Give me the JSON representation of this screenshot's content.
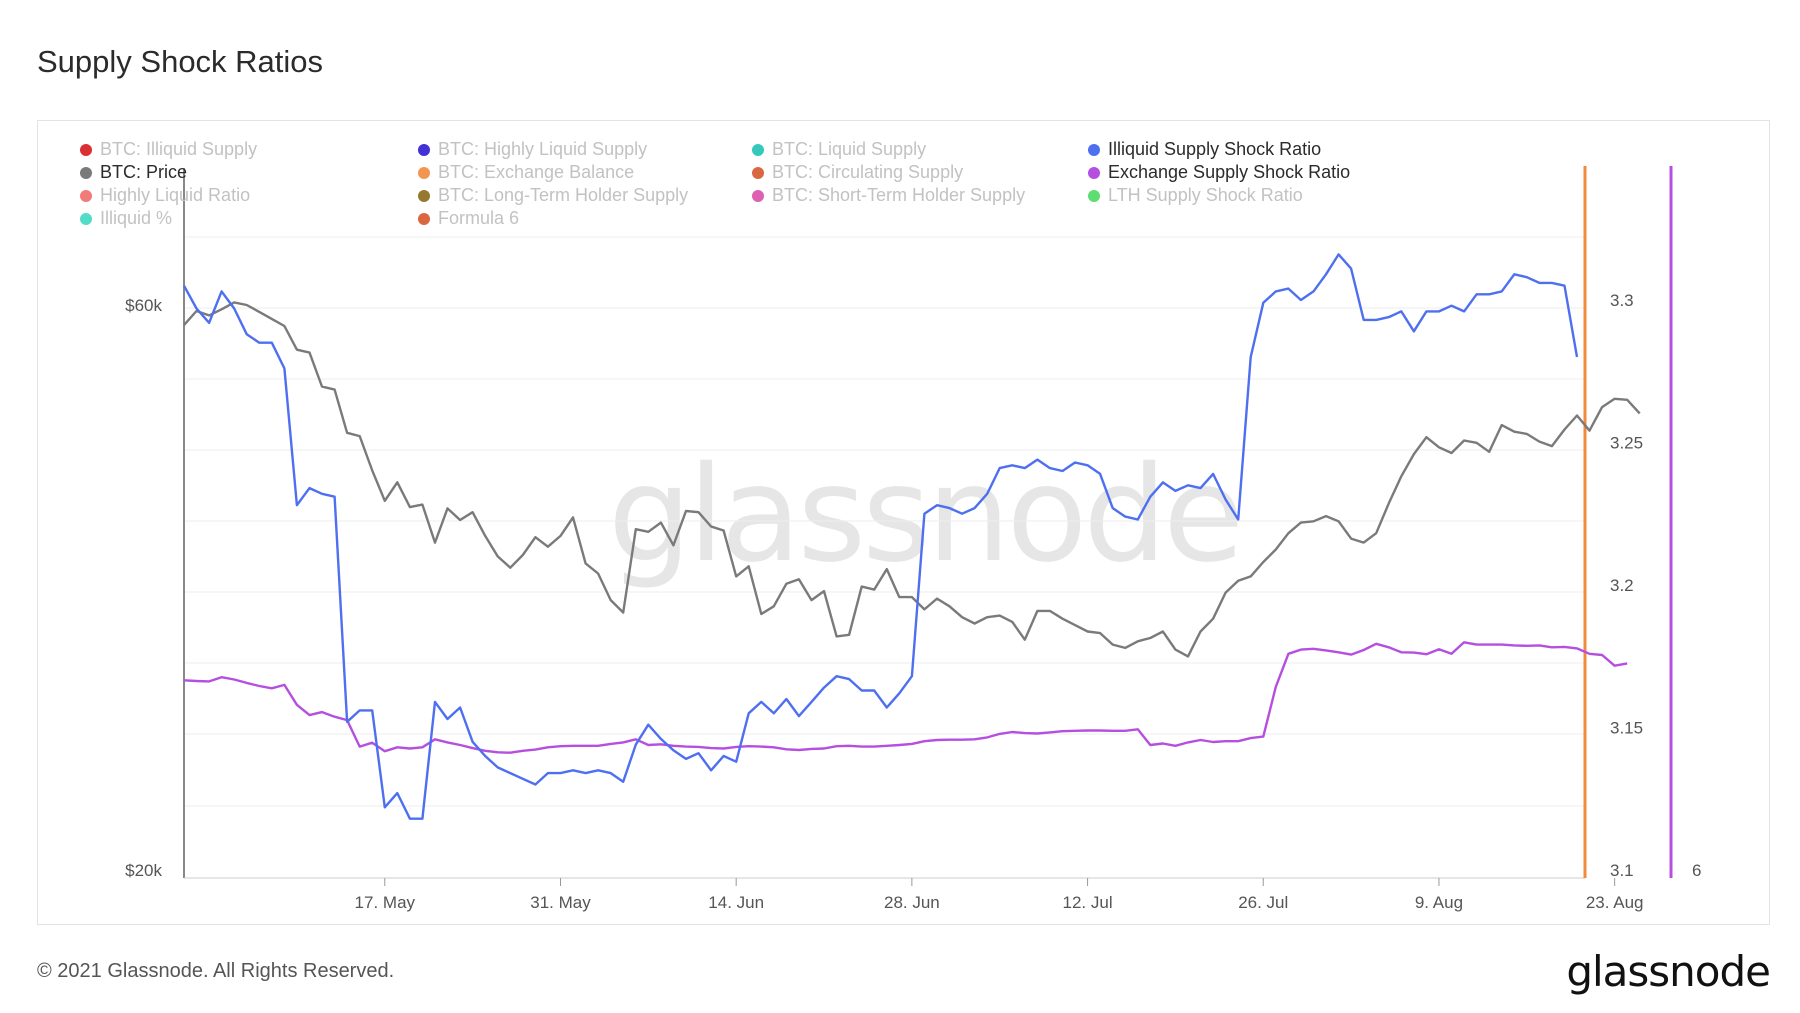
{
  "page": {
    "title": "Supply Shock Ratios",
    "copyright": "© 2021 Glassnode. All Rights Reserved.",
    "logo": "glassnode",
    "watermark": "glassnode"
  },
  "legend": [
    {
      "label": "BTC: Illiquid Supply",
      "color": "#d7191c",
      "active": false,
      "col": 0,
      "row": 0
    },
    {
      "label": "BTC: Highly Liquid Supply",
      "color": "#2c1bd1",
      "active": false,
      "col": 1,
      "row": 0
    },
    {
      "label": "BTC: Liquid Supply",
      "color": "#1fc3b4",
      "active": false,
      "col": 2,
      "row": 0
    },
    {
      "label": "Illiquid Supply Shock Ratio",
      "color": "#4e6ff0",
      "active": true,
      "col": 3,
      "row": 0
    },
    {
      "label": "BTC: Price",
      "color": "#7a7a7a",
      "active": true,
      "col": 0,
      "row": 1
    },
    {
      "label": "BTC: Exchange Balance",
      "color": "#f28a3c",
      "active": false,
      "col": 1,
      "row": 1
    },
    {
      "label": "BTC: Circulating Supply",
      "color": "#d5572b",
      "active": false,
      "col": 2,
      "row": 1
    },
    {
      "label": "Exchange Supply Shock Ratio",
      "color": "#b54fe0",
      "active": true,
      "col": 3,
      "row": 1
    },
    {
      "label": "Highly Liquid Ratio",
      "color": "#f06b6b",
      "active": false,
      "col": 0,
      "row": 2
    },
    {
      "label": "BTC: Long-Term Holder Supply",
      "color": "#8a6a1a",
      "active": false,
      "col": 1,
      "row": 2
    },
    {
      "label": "BTC: Short-Term Holder Supply",
      "color": "#d94fa8",
      "active": false,
      "col": 2,
      "row": 2
    },
    {
      "label": "LTH Supply Shock Ratio",
      "color": "#4cd964",
      "active": false,
      "col": 3,
      "row": 2
    },
    {
      "label": "Illiquid %",
      "color": "#3fd7c1",
      "active": false,
      "col": 0,
      "row": 3
    },
    {
      "label": "Formula 6",
      "color": "#d5572b",
      "active": false,
      "col": 1,
      "row": 3
    }
  ],
  "chart_data": {
    "type": "line",
    "title": "Supply Shock Ratios",
    "x_start": "2021-05-01",
    "x_end": "2021-08-24",
    "x_ticks": [
      {
        "label": "17. May",
        "day": 16
      },
      {
        "label": "31. May",
        "day": 30
      },
      {
        "label": "14. Jun",
        "day": 44
      },
      {
        "label": "28. Jun",
        "day": 58
      },
      {
        "label": "12. Jul",
        "day": 72
      },
      {
        "label": "26. Jul",
        "day": 86
      },
      {
        "label": "9. Aug",
        "day": 100
      },
      {
        "label": "23. Aug",
        "day": 114
      }
    ],
    "left_axis": {
      "ticks": [
        {
          "label": "$20k",
          "value": 20000
        },
        {
          "label": "$60k",
          "value": 60000
        }
      ],
      "scale": "log"
    },
    "right_axis_1": {
      "ticks": [
        {
          "label": "3.1",
          "value": 3.1
        },
        {
          "label": "3.15",
          "value": 3.15
        },
        {
          "label": "3.2",
          "value": 3.2
        },
        {
          "label": "3.25",
          "value": 3.25
        },
        {
          "label": "3.3",
          "value": 3.3
        }
      ]
    },
    "right_axis_2": {
      "ticks": [
        {
          "label": "6",
          "value": 6
        }
      ]
    },
    "grid": true,
    "series": [
      {
        "name": "Illiquid Supply Shock Ratio",
        "color": "#4e6ff0",
        "axis": "right1",
        "values": [
          3.305,
          3.297,
          3.292,
          3.303,
          3.297,
          3.288,
          3.285,
          3.285,
          3.276,
          3.228,
          3.234,
          3.232,
          3.231,
          3.152,
          3.156,
          3.156,
          3.122,
          3.127,
          3.118,
          3.118,
          3.159,
          3.153,
          3.157,
          3.145,
          3.14,
          3.136,
          3.134,
          3.132,
          3.13,
          3.134,
          3.134,
          3.135,
          3.134,
          3.135,
          3.134,
          3.131,
          3.144,
          3.151,
          3.146,
          3.142,
          3.139,
          3.141,
          3.135,
          3.14,
          3.138,
          3.155,
          3.159,
          3.155,
          3.16,
          3.154,
          3.159,
          3.164,
          3.168,
          3.167,
          3.163,
          3.163,
          3.157,
          3.162,
          3.168,
          3.225,
          3.228,
          3.227,
          3.225,
          3.227,
          3.232,
          3.241,
          3.242,
          3.241,
          3.244,
          3.241,
          3.24,
          3.243,
          3.242,
          3.239,
          3.227,
          3.224,
          3.223,
          3.231,
          3.236,
          3.233,
          3.235,
          3.234,
          3.239,
          3.23,
          3.223,
          3.28,
          3.299,
          3.303,
          3.304,
          3.3,
          3.303,
          3.309,
          3.316,
          3.311,
          3.293,
          3.293,
          3.294,
          3.296,
          3.289,
          3.296,
          3.296,
          3.298,
          3.296,
          3.302,
          3.302,
          3.303,
          3.309,
          3.308,
          3.306,
          3.306,
          3.305,
          3.28
        ]
      },
      {
        "name": "BTC: Price",
        "color": "#7a7a7a",
        "axis": "left",
        "values": [
          57700,
          59300,
          58800,
          59500,
          60300,
          60000,
          59200,
          58400,
          57600,
          55000,
          54700,
          51200,
          50900,
          46800,
          46500,
          43500,
          41000,
          42500,
          40500,
          40700,
          37800,
          40400,
          39500,
          40100,
          38300,
          36800,
          36000,
          36900,
          38200,
          37500,
          38300,
          39700,
          36300,
          35600,
          33800,
          33000,
          38800,
          38600,
          39300,
          37600,
          40200,
          40100,
          39000,
          38700,
          35400,
          36100,
          32900,
          33400,
          34900,
          35200,
          33800,
          34400,
          31500,
          31600,
          34700,
          34500,
          35900,
          34000,
          34000,
          33200,
          33900,
          33400,
          32700,
          32300,
          32700,
          32800,
          32400,
          31300,
          33100,
          33100,
          32600,
          32200,
          31800,
          31700,
          31000,
          30800,
          31200,
          31400,
          31800,
          30700,
          30300,
          31800,
          32600,
          34300,
          35100,
          35400,
          36400,
          37300,
          38500,
          39300,
          39400,
          39800,
          39400,
          38100,
          37800,
          38500,
          40800,
          43000,
          44900,
          46400,
          45500,
          45000,
          46100,
          45900,
          45100,
          47500,
          46900,
          46700,
          46000,
          45600,
          47100,
          48400,
          47000,
          49200,
          50000,
          49900,
          48600
        ]
      },
      {
        "name": "Exchange Supply Shock Ratio",
        "color": "#b54fe0",
        "axis": "right2",
        "values": [
          10.95,
          10.93,
          10.92,
          11.03,
          10.97,
          10.88,
          10.8,
          10.74,
          10.83,
          10.31,
          10.04,
          10.12,
          10.0,
          9.91,
          9.22,
          9.32,
          9.1,
          9.2,
          9.17,
          9.2,
          9.41,
          9.33,
          9.26,
          9.18,
          9.11,
          9.07,
          9.06,
          9.11,
          9.14,
          9.2,
          9.23,
          9.24,
          9.24,
          9.24,
          9.29,
          9.33,
          9.41,
          9.26,
          9.28,
          9.24,
          9.22,
          9.21,
          9.18,
          9.17,
          9.21,
          9.23,
          9.22,
          9.2,
          9.15,
          9.13,
          9.16,
          9.17,
          9.23,
          9.24,
          9.22,
          9.22,
          9.24,
          9.26,
          9.29,
          9.36,
          9.39,
          9.4,
          9.4,
          9.41,
          9.46,
          9.55,
          9.6,
          9.57,
          9.56,
          9.59,
          9.62,
          9.63,
          9.64,
          9.64,
          9.63,
          9.63,
          9.67,
          9.26,
          9.3,
          9.24,
          9.33,
          9.39,
          9.34,
          9.36,
          9.36,
          9.44,
          9.48,
          10.78,
          11.64,
          11.75,
          11.77,
          11.73,
          11.68,
          11.62,
          11.74,
          11.9,
          11.81,
          11.68,
          11.67,
          11.63,
          11.76,
          11.64,
          11.94,
          11.88,
          11.88,
          11.88,
          11.86,
          11.85,
          11.86,
          11.81,
          11.82,
          11.78,
          11.64,
          11.61,
          11.33,
          11.39
        ]
      }
    ]
  }
}
